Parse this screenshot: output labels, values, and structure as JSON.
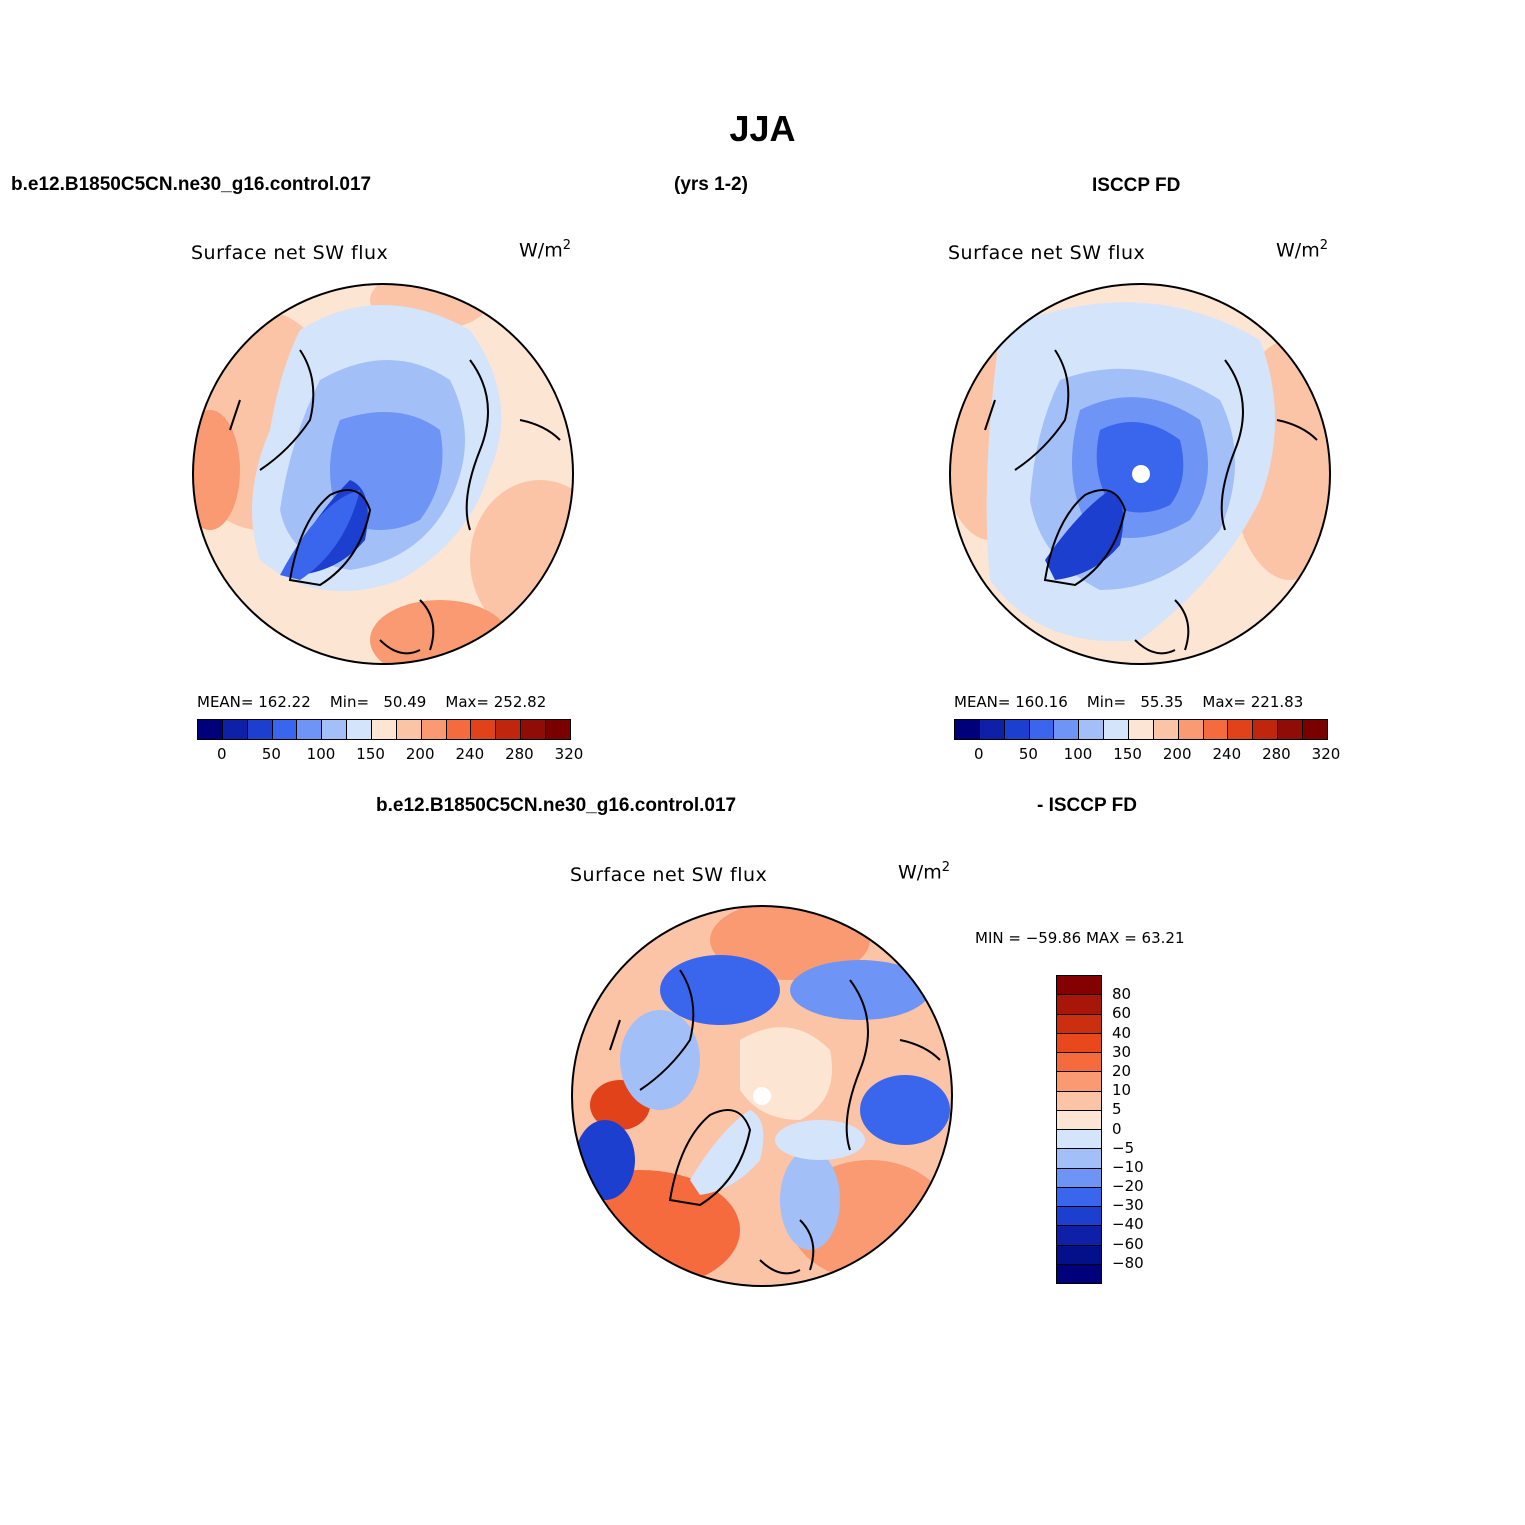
{
  "title": "JJA",
  "header_top": {
    "case": "b.e12.B1850C5CN.ne30_g16.control.017",
    "years": "(yrs 1-2)",
    "obs": "ISCCP FD"
  },
  "header_bottom": {
    "case": "b.e12.B1850C5CN.ne30_g16.control.017",
    "obs": "- ISCCP FD"
  },
  "panel_model": {
    "variable": "Surface net SW flux",
    "units": "W/m",
    "units_sup": "2",
    "mean_label": "MEAN=",
    "mean": "162.22",
    "min_label": "Min=",
    "min": "50.49",
    "max_label": "Max=",
    "max": "252.82"
  },
  "panel_obs": {
    "variable": "Surface net SW flux",
    "units": "W/m",
    "units_sup": "2",
    "mean_label": "MEAN=",
    "mean": "160.16",
    "min_label": "Min=",
    "min": "55.35",
    "max_label": "Max=",
    "max": "221.83"
  },
  "panel_diff": {
    "variable": "Surface net SW flux",
    "units": "W/m",
    "units_sup": "2",
    "minmax_text": "MIN = −59.86 MAX =  63.21"
  },
  "abs_colorbar": {
    "ticks": [
      "0",
      "50",
      "100",
      "150",
      "200",
      "240",
      "280",
      "320"
    ],
    "colors": [
      "#00007a",
      "#0f20a8",
      "#1d3fd0",
      "#3a66ee",
      "#6e95f5",
      "#a3bff8",
      "#d4e4fb",
      "#fde5d3",
      "#fcc4a7",
      "#f99a72",
      "#f56b3e",
      "#e24219",
      "#c0260d",
      "#900c06",
      "#7a0000"
    ]
  },
  "diff_colorbar": {
    "ticks": [
      "80",
      "60",
      "40",
      "30",
      "20",
      "10",
      "5",
      "0",
      "−5",
      "−10",
      "−20",
      "−30",
      "−40",
      "−60",
      "−80"
    ],
    "colors": [
      "#850000",
      "#a8160a",
      "#cc2f10",
      "#e8481c",
      "#f56b3e",
      "#f99a72",
      "#fcc4a7",
      "#fde5d3",
      "#d4e4fb",
      "#a3bff8",
      "#6e95f5",
      "#3a66ee",
      "#1d3fd0",
      "#0f20a8",
      "#04108a",
      "#00007a"
    ]
  }
}
